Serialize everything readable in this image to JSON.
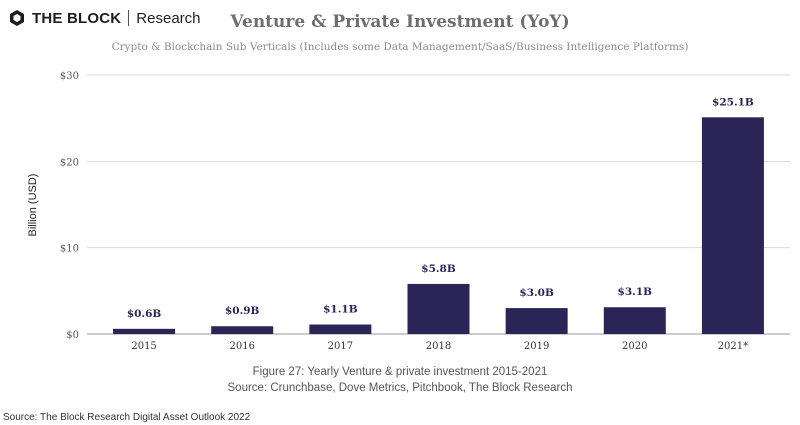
{
  "brand": {
    "name": "THE BLOCK",
    "sub": "Research",
    "logo_icon": "the-block-logo-icon"
  },
  "chart_data": {
    "type": "bar",
    "title": "Venture & Private Investment (YoY)",
    "subtitle": "Crypto & Blockchain Sub Verticals (Includes some Data Management/SaaS/Business Intelligence Platforms)",
    "xlabel": "",
    "ylabel": "Billion (USD)",
    "categories": [
      "2015",
      "2016",
      "2017",
      "2018",
      "2019",
      "2020",
      "2021*"
    ],
    "values": [
      0.6,
      0.9,
      1.1,
      5.8,
      3.0,
      3.1,
      25.1
    ],
    "data_labels": [
      "$0.6B",
      "$0.9B",
      "$1.1B",
      "$5.8B",
      "$3.0B",
      "$3.1B",
      "$25.1B"
    ],
    "ylim": [
      0,
      30
    ],
    "yticks": [
      0,
      10,
      20,
      30
    ],
    "ytick_labels": [
      "$0",
      "$10",
      "$20",
      "$30"
    ],
    "grid": true,
    "bar_color": "#2b2457",
    "grid_color": "#d9d9d9"
  },
  "caption": {
    "line1": "Figure 27: Yearly Venture & private investment 2015-2021",
    "line2": "Source:  Crunchbase, Dove Metrics, Pitchbook, The Block Research"
  },
  "source_note": "Source: The Block Research Digital Asset Outlook 2022"
}
